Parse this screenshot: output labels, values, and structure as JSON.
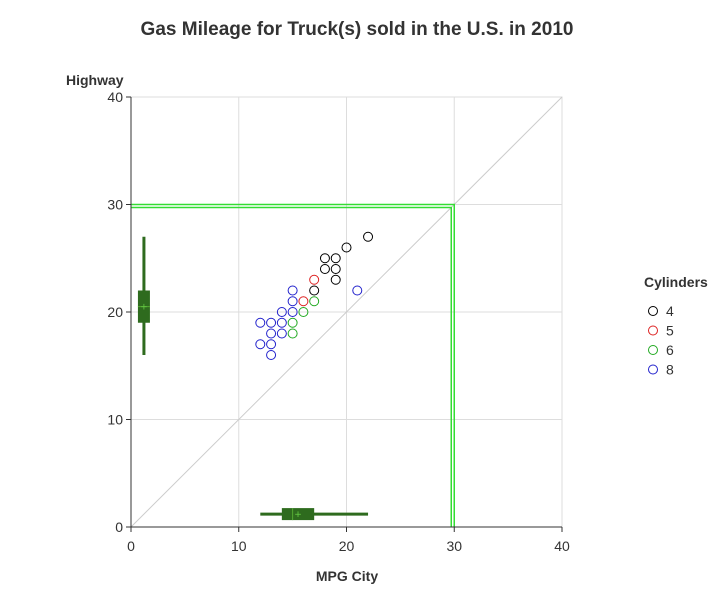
{
  "chart_data": {
    "type": "scatter",
    "title": "Gas Mileage for Truck(s) sold in the U.S. in 2010",
    "xlabel": "MPG City",
    "ylabel": "Highway",
    "xlim": [
      0,
      40
    ],
    "ylim": [
      0,
      40
    ],
    "x_ticks": [
      "0",
      "10",
      "20",
      "30",
      "40"
    ],
    "y_ticks": [
      "0",
      "10",
      "20",
      "30",
      "40"
    ],
    "grid": true,
    "reference_line": "diagonal y = x",
    "highlight_box": {
      "x_max": 30,
      "y_max": 30,
      "color": "#33dd33"
    },
    "legend": {
      "title": "Cylinders",
      "position": "right"
    },
    "series": [
      {
        "name": "4",
        "color": "#000000",
        "points": [
          [
            17,
            22
          ],
          [
            18,
            24
          ],
          [
            18,
            25
          ],
          [
            19,
            23
          ],
          [
            19,
            24
          ],
          [
            19,
            25
          ],
          [
            20,
            26
          ],
          [
            22,
            27
          ]
        ]
      },
      {
        "name": "5",
        "color": "#dd2222",
        "points": [
          [
            16,
            21
          ],
          [
            17,
            23
          ]
        ]
      },
      {
        "name": "6",
        "color": "#22aa22",
        "points": [
          [
            15,
            18
          ],
          [
            15,
            19
          ],
          [
            16,
            20
          ],
          [
            17,
            21
          ]
        ]
      },
      {
        "name": "8",
        "color": "#2222cc",
        "points": [
          [
            12,
            17
          ],
          [
            12,
            19
          ],
          [
            13,
            16
          ],
          [
            13,
            17
          ],
          [
            13,
            18
          ],
          [
            13,
            19
          ],
          [
            14,
            18
          ],
          [
            14,
            19
          ],
          [
            14,
            20
          ],
          [
            15,
            20
          ],
          [
            15,
            21
          ],
          [
            15,
            22
          ],
          [
            21,
            22
          ]
        ]
      }
    ],
    "box_x": {
      "min": 12,
      "q1": 14,
      "median": 15,
      "mean": 15.5,
      "q3": 17,
      "max": 22,
      "color": "#2e6b1e"
    },
    "box_y": {
      "min": 16,
      "q1": 19,
      "median": 20.5,
      "mean": 20.5,
      "q3": 22,
      "max": 27,
      "color": "#2e6b1e"
    }
  }
}
